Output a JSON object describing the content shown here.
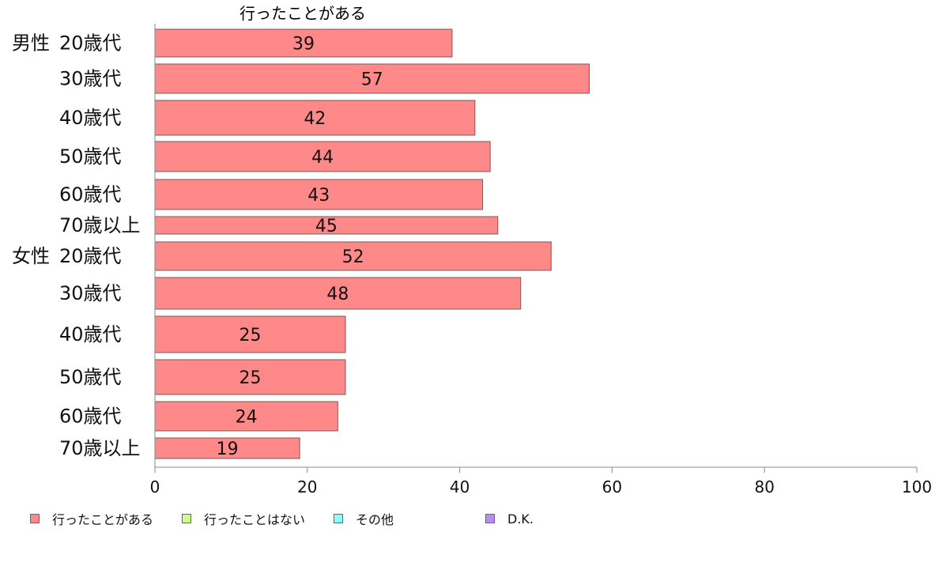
{
  "chart_data": {
    "type": "bar",
    "orientation": "horizontal",
    "title": "行ったことがある",
    "groups": [
      {
        "name": "男性",
        "rows": [
          {
            "label": "20歳代",
            "value": 39
          },
          {
            "label": "30歳代",
            "value": 57
          },
          {
            "label": "40歳代",
            "value": 42
          },
          {
            "label": "50歳代",
            "value": 44
          },
          {
            "label": "60歳代",
            "value": 43
          },
          {
            "label": "70歳以上",
            "value": 45
          }
        ]
      },
      {
        "name": "女性",
        "rows": [
          {
            "label": "20歳代",
            "value": 52
          },
          {
            "label": "30歳代",
            "value": 48
          },
          {
            "label": "40歳代",
            "value": 25
          },
          {
            "label": "50歳代",
            "value": 25
          },
          {
            "label": "60歳代",
            "value": 24
          },
          {
            "label": "70歳以上",
            "value": 19
          }
        ]
      }
    ],
    "series": [
      {
        "name": "行ったことがある",
        "color": "#ff8888"
      }
    ],
    "x_ticks": [
      0,
      20,
      40,
      60,
      80,
      100
    ],
    "xlim": [
      0,
      100
    ],
    "grid": false,
    "legend_position": "bottom-left"
  },
  "legend": {
    "items": [
      {
        "label": "行ったことがある",
        "color": "#ff8888"
      },
      {
        "label": "行ったことはない",
        "color": "#ccff88"
      },
      {
        "label": "その他",
        "color": "#88ffff"
      },
      {
        "label": "D.K.",
        "color": "#bb88ff"
      }
    ]
  }
}
